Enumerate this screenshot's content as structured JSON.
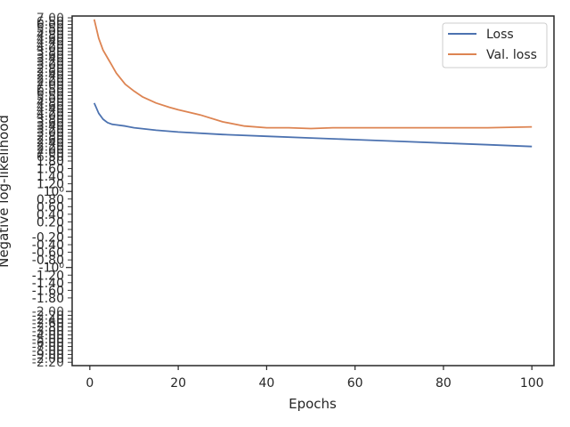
{
  "chart_data": {
    "type": "line",
    "xlabel": "Epochs",
    "ylabel": "Negative log-likelihood",
    "xlim": [
      -4,
      105
    ],
    "ylim": [
      -11.5,
      9.0
    ],
    "x_ticks": [
      0,
      20,
      40,
      60,
      80,
      100
    ],
    "x_tick_labels": [
      "0",
      "20",
      "40",
      "60",
      "80",
      "100"
    ],
    "y_tick_labels_legible": [
      "1.80",
      "1.60",
      "1.40",
      "1.20",
      "10⁰",
      "0.80",
      "0.60",
      "0.40",
      "0.20",
      "0",
      "-0.20",
      "-0.40",
      "-0.60",
      "-0.80",
      "-10⁰",
      "-1.20",
      "-1.40",
      "-1.60",
      "-1.80"
    ],
    "legend_position": "upper right",
    "grid": false,
    "colors": {
      "Loss": "#4c72b0",
      "Val. loss": "#dd8452"
    },
    "series": [
      {
        "name": "Loss",
        "x": [
          1,
          2,
          3,
          4,
          5,
          8,
          10,
          15,
          20,
          30,
          40,
          50,
          60,
          70,
          80,
          90,
          100
        ],
        "y": [
          3.9,
          3.3,
          2.95,
          2.75,
          2.65,
          2.55,
          2.45,
          2.3,
          2.2,
          2.05,
          1.95,
          1.85,
          1.75,
          1.65,
          1.55,
          1.45,
          1.35
        ]
      },
      {
        "name": "Val. loss",
        "x": [
          1,
          2,
          3,
          4,
          5,
          6,
          8,
          10,
          12,
          15,
          18,
          20,
          25,
          30,
          35,
          40,
          45,
          50,
          55,
          60,
          70,
          80,
          90,
          100
        ],
        "y": [
          8.8,
          7.7,
          7.0,
          6.55,
          6.1,
          5.65,
          5.0,
          4.6,
          4.25,
          3.9,
          3.65,
          3.5,
          3.2,
          2.8,
          2.55,
          2.45,
          2.45,
          2.4,
          2.45,
          2.45,
          2.45,
          2.45,
          2.45,
          2.5
        ]
      }
    ]
  }
}
